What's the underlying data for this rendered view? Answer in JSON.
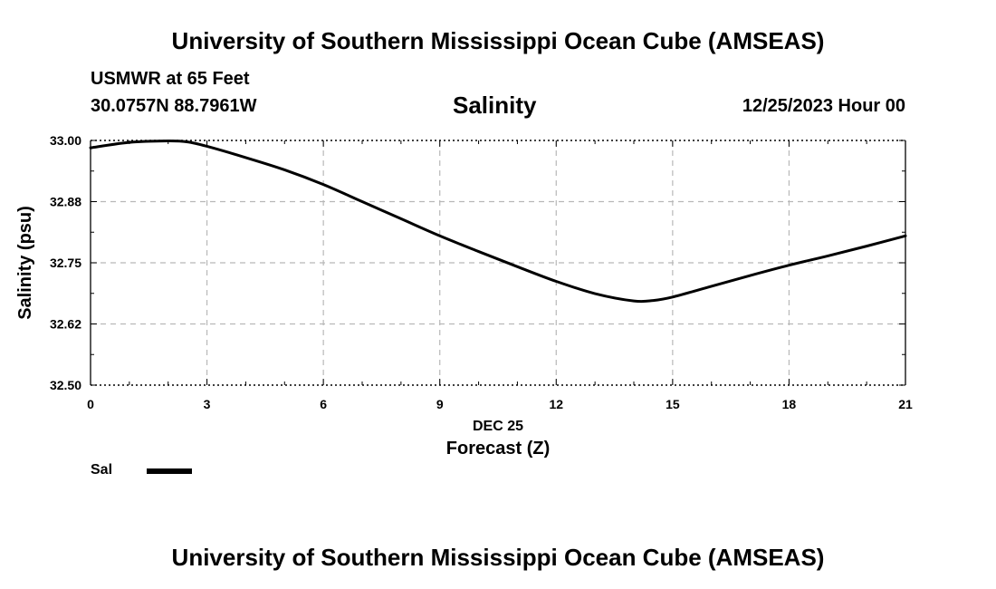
{
  "header": {
    "title": "University of Southern Mississippi Ocean Cube (AMSEAS)",
    "station": "USMWR at 65 Feet",
    "coords": "30.0757N  88.7961W",
    "datetime": "12/25/2023 Hour 00"
  },
  "footer": {
    "title": "University of Southern Mississippi Ocean Cube (AMSEAS)"
  },
  "chart_data": {
    "type": "line",
    "title": "Salinity",
    "xlabel": "Forecast (Z)",
    "xlabel_date": "DEC 25",
    "ylabel": "Salinity (psu)",
    "xlim": [
      0,
      21
    ],
    "ylim": [
      32.5,
      33.0
    ],
    "x_ticks": [
      0,
      3,
      6,
      9,
      12,
      15,
      18,
      21
    ],
    "y_ticks": [
      32.5,
      32.625,
      32.75,
      32.875,
      33.0
    ],
    "y_tick_labels": [
      "32.50",
      "32.62",
      "32.75",
      "32.88",
      "33.00"
    ],
    "grid": true,
    "legend_position": "bottom-left",
    "series": [
      {
        "name": "Sal",
        "color": "#000000",
        "x": [
          0,
          1,
          2,
          2.5,
          3,
          4,
          5,
          6,
          7,
          8,
          9,
          10,
          11,
          12,
          13,
          14,
          14.5,
          15,
          16,
          17,
          18,
          19,
          20,
          21
        ],
        "y": [
          32.985,
          32.996,
          32.999,
          32.997,
          32.988,
          32.965,
          32.94,
          32.91,
          32.875,
          32.84,
          32.805,
          32.773,
          32.742,
          32.712,
          32.687,
          32.672,
          32.673,
          32.68,
          32.702,
          32.724,
          32.745,
          32.764,
          32.784,
          32.805
        ]
      }
    ]
  }
}
